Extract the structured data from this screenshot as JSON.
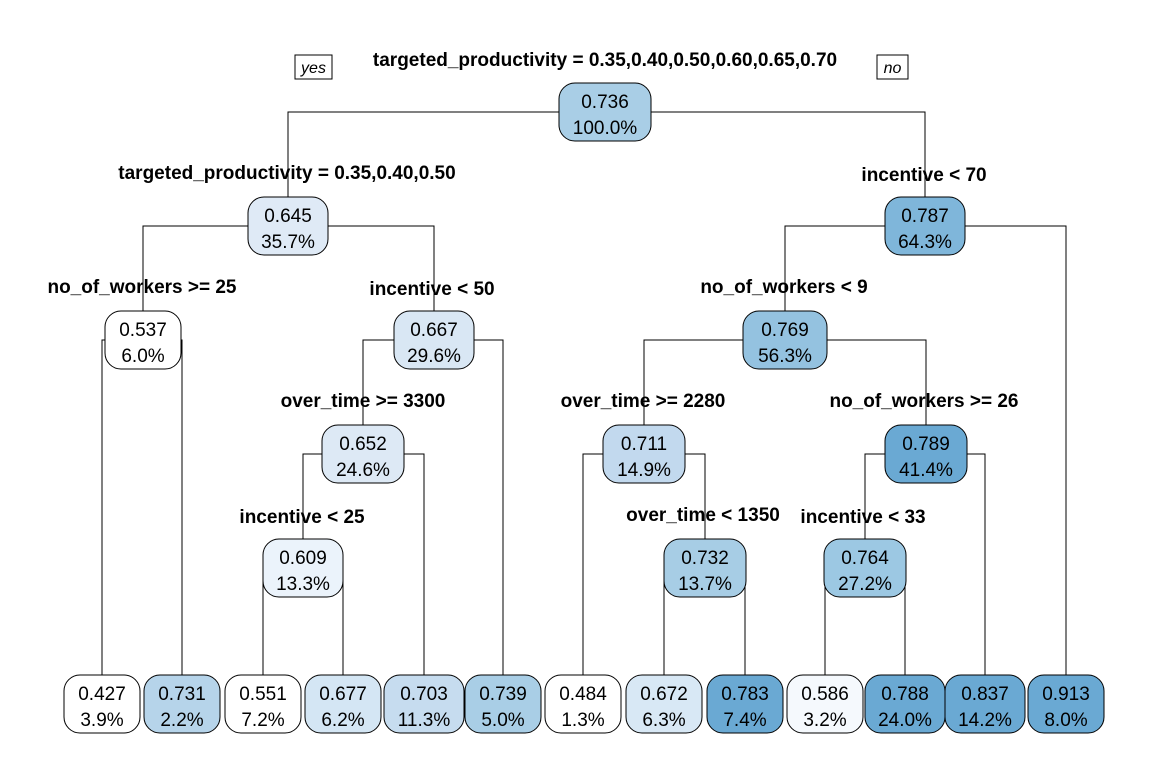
{
  "labels": {
    "yes": "yes",
    "no": "no"
  },
  "splits": {
    "root": "targeted_productivity = 0.35,0.40,0.50,0.60,0.65,0.70",
    "n2": "targeted_productivity = 0.35,0.40,0.50",
    "n3": "incentive < 70",
    "n4": "no_of_workers >= 25",
    "n5": "incentive < 50",
    "n6": "no_of_workers < 9",
    "n10": "over_time >= 3300",
    "n12": "over_time >= 2280",
    "n13": "no_of_workers >= 26",
    "n20": "incentive < 25",
    "n25": "over_time < 1350",
    "n26": "incentive < 33"
  },
  "nodes": {
    "root": {
      "value": "0.736",
      "percent": "100.0%"
    },
    "n2": {
      "value": "0.645",
      "percent": "35.7%"
    },
    "n3": {
      "value": "0.787",
      "percent": "64.3%"
    },
    "n4": {
      "value": "0.537",
      "percent": "6.0%"
    },
    "n5": {
      "value": "0.667",
      "percent": "29.6%"
    },
    "n6": {
      "value": "0.769",
      "percent": "56.3%"
    },
    "n10": {
      "value": "0.652",
      "percent": "24.6%"
    },
    "n12": {
      "value": "0.711",
      "percent": "14.9%"
    },
    "n13": {
      "value": "0.789",
      "percent": "41.4%"
    },
    "n20": {
      "value": "0.609",
      "percent": "13.3%"
    },
    "n25": {
      "value": "0.732",
      "percent": "13.7%"
    },
    "n26": {
      "value": "0.764",
      "percent": "27.2%"
    },
    "l1": {
      "value": "0.427",
      "percent": "3.9%"
    },
    "l2": {
      "value": "0.731",
      "percent": "2.2%"
    },
    "l3": {
      "value": "0.551",
      "percent": "7.2%"
    },
    "l4": {
      "value": "0.677",
      "percent": "6.2%"
    },
    "l5": {
      "value": "0.703",
      "percent": "11.3%"
    },
    "l6": {
      "value": "0.739",
      "percent": "5.0%"
    },
    "l7": {
      "value": "0.484",
      "percent": "1.3%"
    },
    "l8": {
      "value": "0.672",
      "percent": "6.3%"
    },
    "l9": {
      "value": "0.783",
      "percent": "7.4%"
    },
    "l10": {
      "value": "0.586",
      "percent": "3.2%"
    },
    "l11": {
      "value": "0.788",
      "percent": "24.0%"
    },
    "l12": {
      "value": "0.837",
      "percent": "14.2%"
    },
    "l13": {
      "value": "0.913",
      "percent": "8.0%"
    }
  },
  "colors": {
    "root": "#a9cee6",
    "n2": "#dfeaf6",
    "n3": "#7fb6da",
    "n4": "#ffffff",
    "n5": "#d9e7f4",
    "n6": "#94c2e0",
    "n10": "#dde9f5",
    "n12": "#c2d9ee",
    "n13": "#6aa9d3",
    "n20": "#ebf3fb",
    "n25": "#a7cde5",
    "n26": "#9cc8e3",
    "l1": "#ffffff",
    "l2": "#b6d4ea",
    "l3": "#ffffff",
    "l4": "#d4e6f4",
    "l5": "#c6dcef",
    "l6": "#a9cee6",
    "l7": "#ffffff",
    "l8": "#d8e8f5",
    "l9": "#6aa9d3",
    "l10": "#f5f9fd",
    "l11": "#6aa9d3",
    "l12": "#6aa9d3",
    "l13": "#6aa9d3"
  }
}
